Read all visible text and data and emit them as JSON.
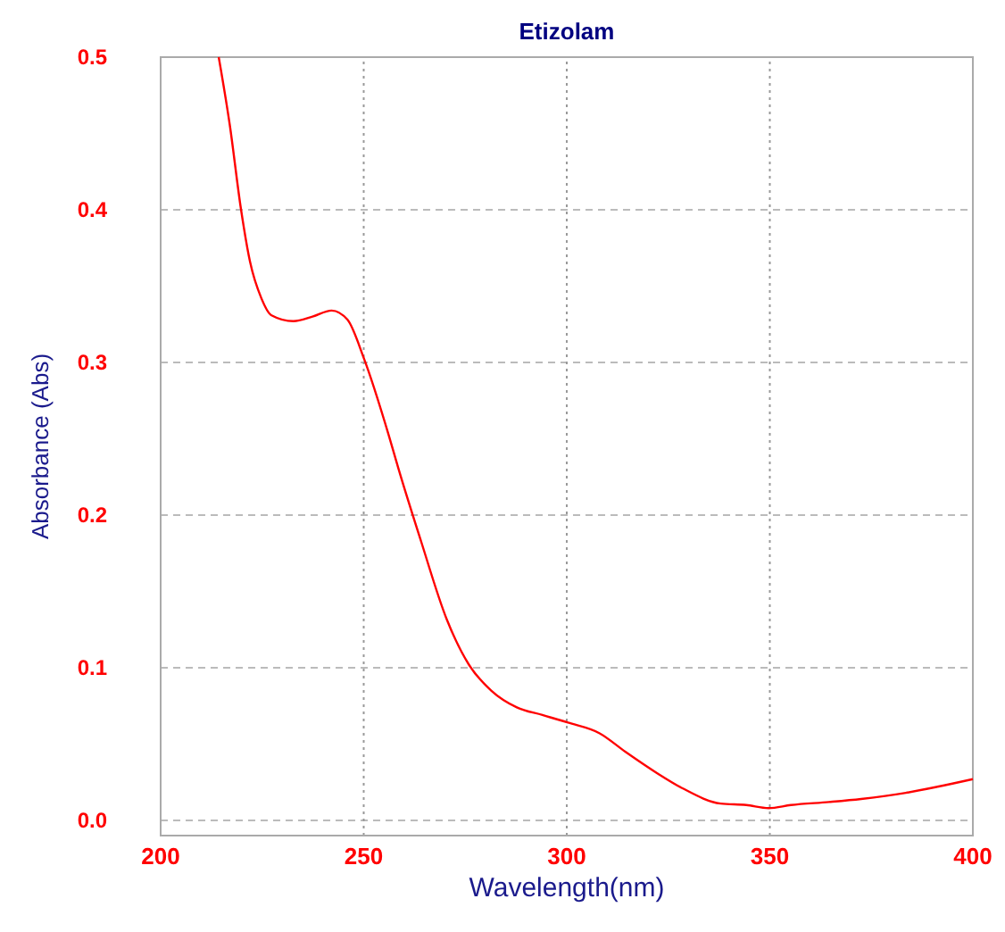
{
  "chart_data": {
    "type": "line",
    "title": "Etizolam",
    "xlabel": "Wavelength(nm)",
    "ylabel": "Absorbance (Abs)",
    "xlim": [
      200,
      400
    ],
    "xticks": [
      200,
      250,
      300,
      350,
      400
    ],
    "ylim": [
      -0.01,
      0.5
    ],
    "yticks": [
      {
        "value": 0,
        "label": "0.0"
      },
      0.1,
      0.2,
      0.3,
      0.4,
      0.5
    ],
    "grid": true,
    "series": [
      {
        "color": "#ff0000",
        "x": [
          214.3,
          217,
          219.8,
          222,
          224.8,
          227.2,
          232.7,
          237.4,
          242.1,
          246,
          250,
          256.2,
          258.6,
          264.1,
          270.4,
          275.9,
          281.4,
          287.7,
          294,
          300.3,
          308.1,
          314.4,
          322.2,
          328.5,
          337.9,
          344.2,
          349.7,
          355.2,
          364.6,
          372.5,
          383.5,
          391.3,
          400
        ],
        "values": [
          0.5,
          0.456,
          0.4,
          0.366,
          0.342,
          0.331,
          0.327,
          0.33,
          0.334,
          0.328,
          0.303,
          0.252,
          0.23,
          0.183,
          0.132,
          0.102,
          0.085,
          0.074,
          0.069,
          0.064,
          0.057,
          0.045,
          0.031,
          0.021,
          0.011,
          0.01,
          0.008,
          0.01,
          0.012,
          0.014,
          0.018,
          0.022,
          0.027
        ]
      }
    ]
  }
}
